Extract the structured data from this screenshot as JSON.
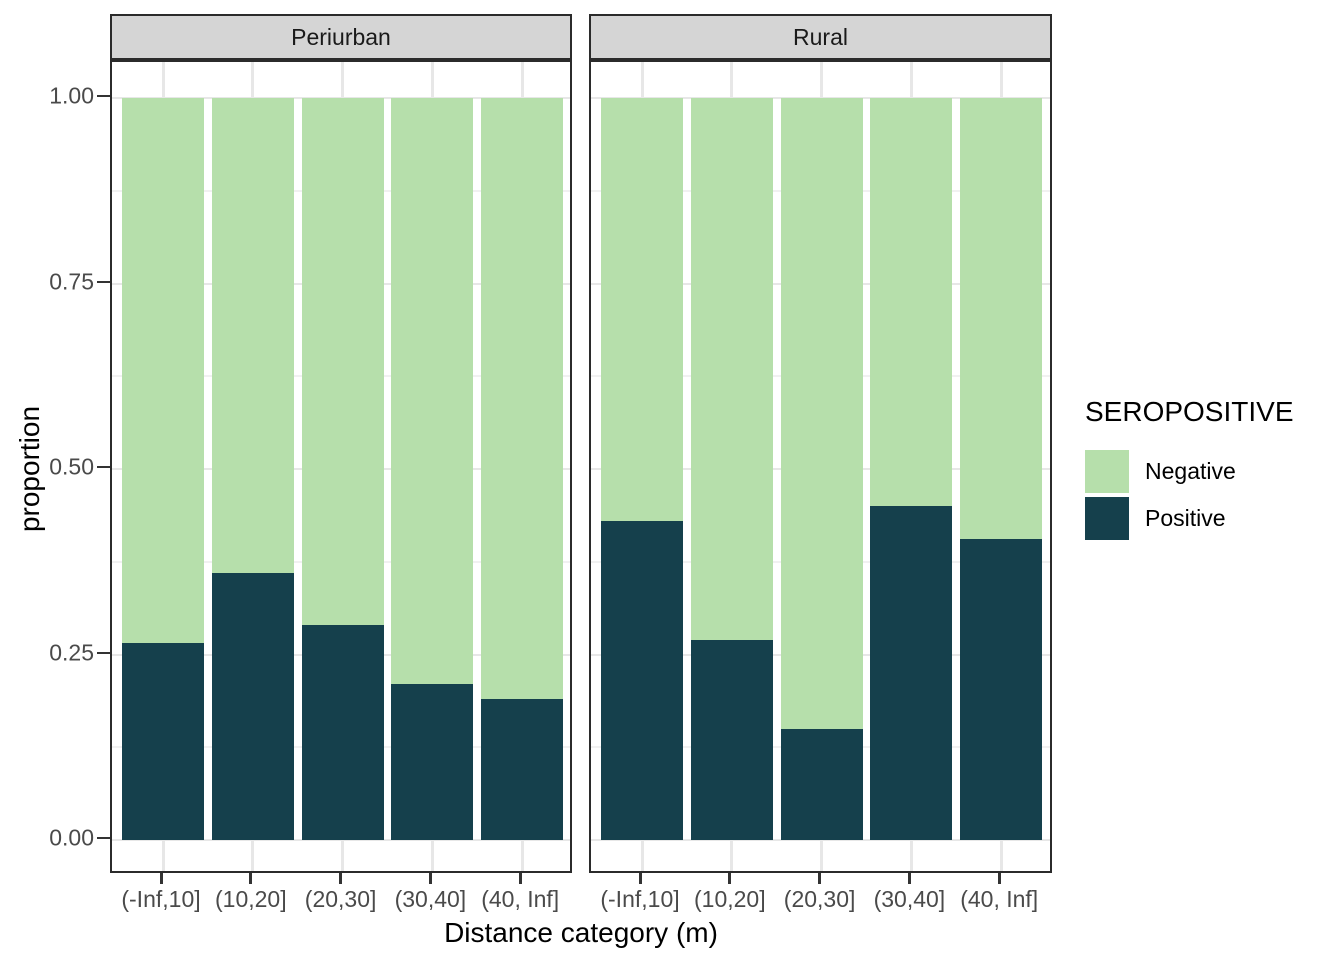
{
  "accent_colors": {
    "negative_green": "#b6dfab",
    "positive_teal": "#15404c",
    "strip_background": "#d5d5d5",
    "panel_border": "#2b2b2b",
    "gridline_major": "#e7e7e7",
    "tick_text": "#4a4a4a"
  },
  "chart_data": {
    "type": "bar",
    "subtype": "stacked-proportion-faceted",
    "title": "",
    "xlabel": "Distance category (m)",
    "ylabel": "proportion",
    "ylim": [
      0,
      1
    ],
    "ytick_labels": [
      "0.00",
      "0.25",
      "0.50",
      "0.75",
      "1.00"
    ],
    "ytick_values": [
      0,
      0.25,
      0.5,
      0.75,
      1.0
    ],
    "yminor_values": [
      0.125,
      0.375,
      0.625,
      0.875
    ],
    "grid": "on",
    "categories": [
      "(-Inf,10]",
      "(10,20]",
      "(20,30]",
      "(30,40]",
      "(40, Inf]"
    ],
    "legend": {
      "position": "right",
      "title": "SEROPOSITIVE",
      "entries": [
        {
          "label": "Negative",
          "color": "#b6dfab"
        },
        {
          "label": "Positive",
          "color": "#15404c"
        }
      ]
    },
    "facets": [
      {
        "label": "Periurban",
        "series": [
          {
            "name": "Positive",
            "values": [
              0.265,
              0.36,
              0.29,
              0.21,
              0.19
            ]
          },
          {
            "name": "Negative",
            "values": [
              0.735,
              0.64,
              0.71,
              0.79,
              0.81
            ]
          }
        ]
      },
      {
        "label": "Rural",
        "series": [
          {
            "name": "Positive",
            "values": [
              0.43,
              0.27,
              0.15,
              0.45,
              0.405
            ]
          },
          {
            "name": "Negative",
            "values": [
              0.57,
              0.73,
              0.85,
              0.55,
              0.595
            ]
          }
        ]
      }
    ]
  }
}
